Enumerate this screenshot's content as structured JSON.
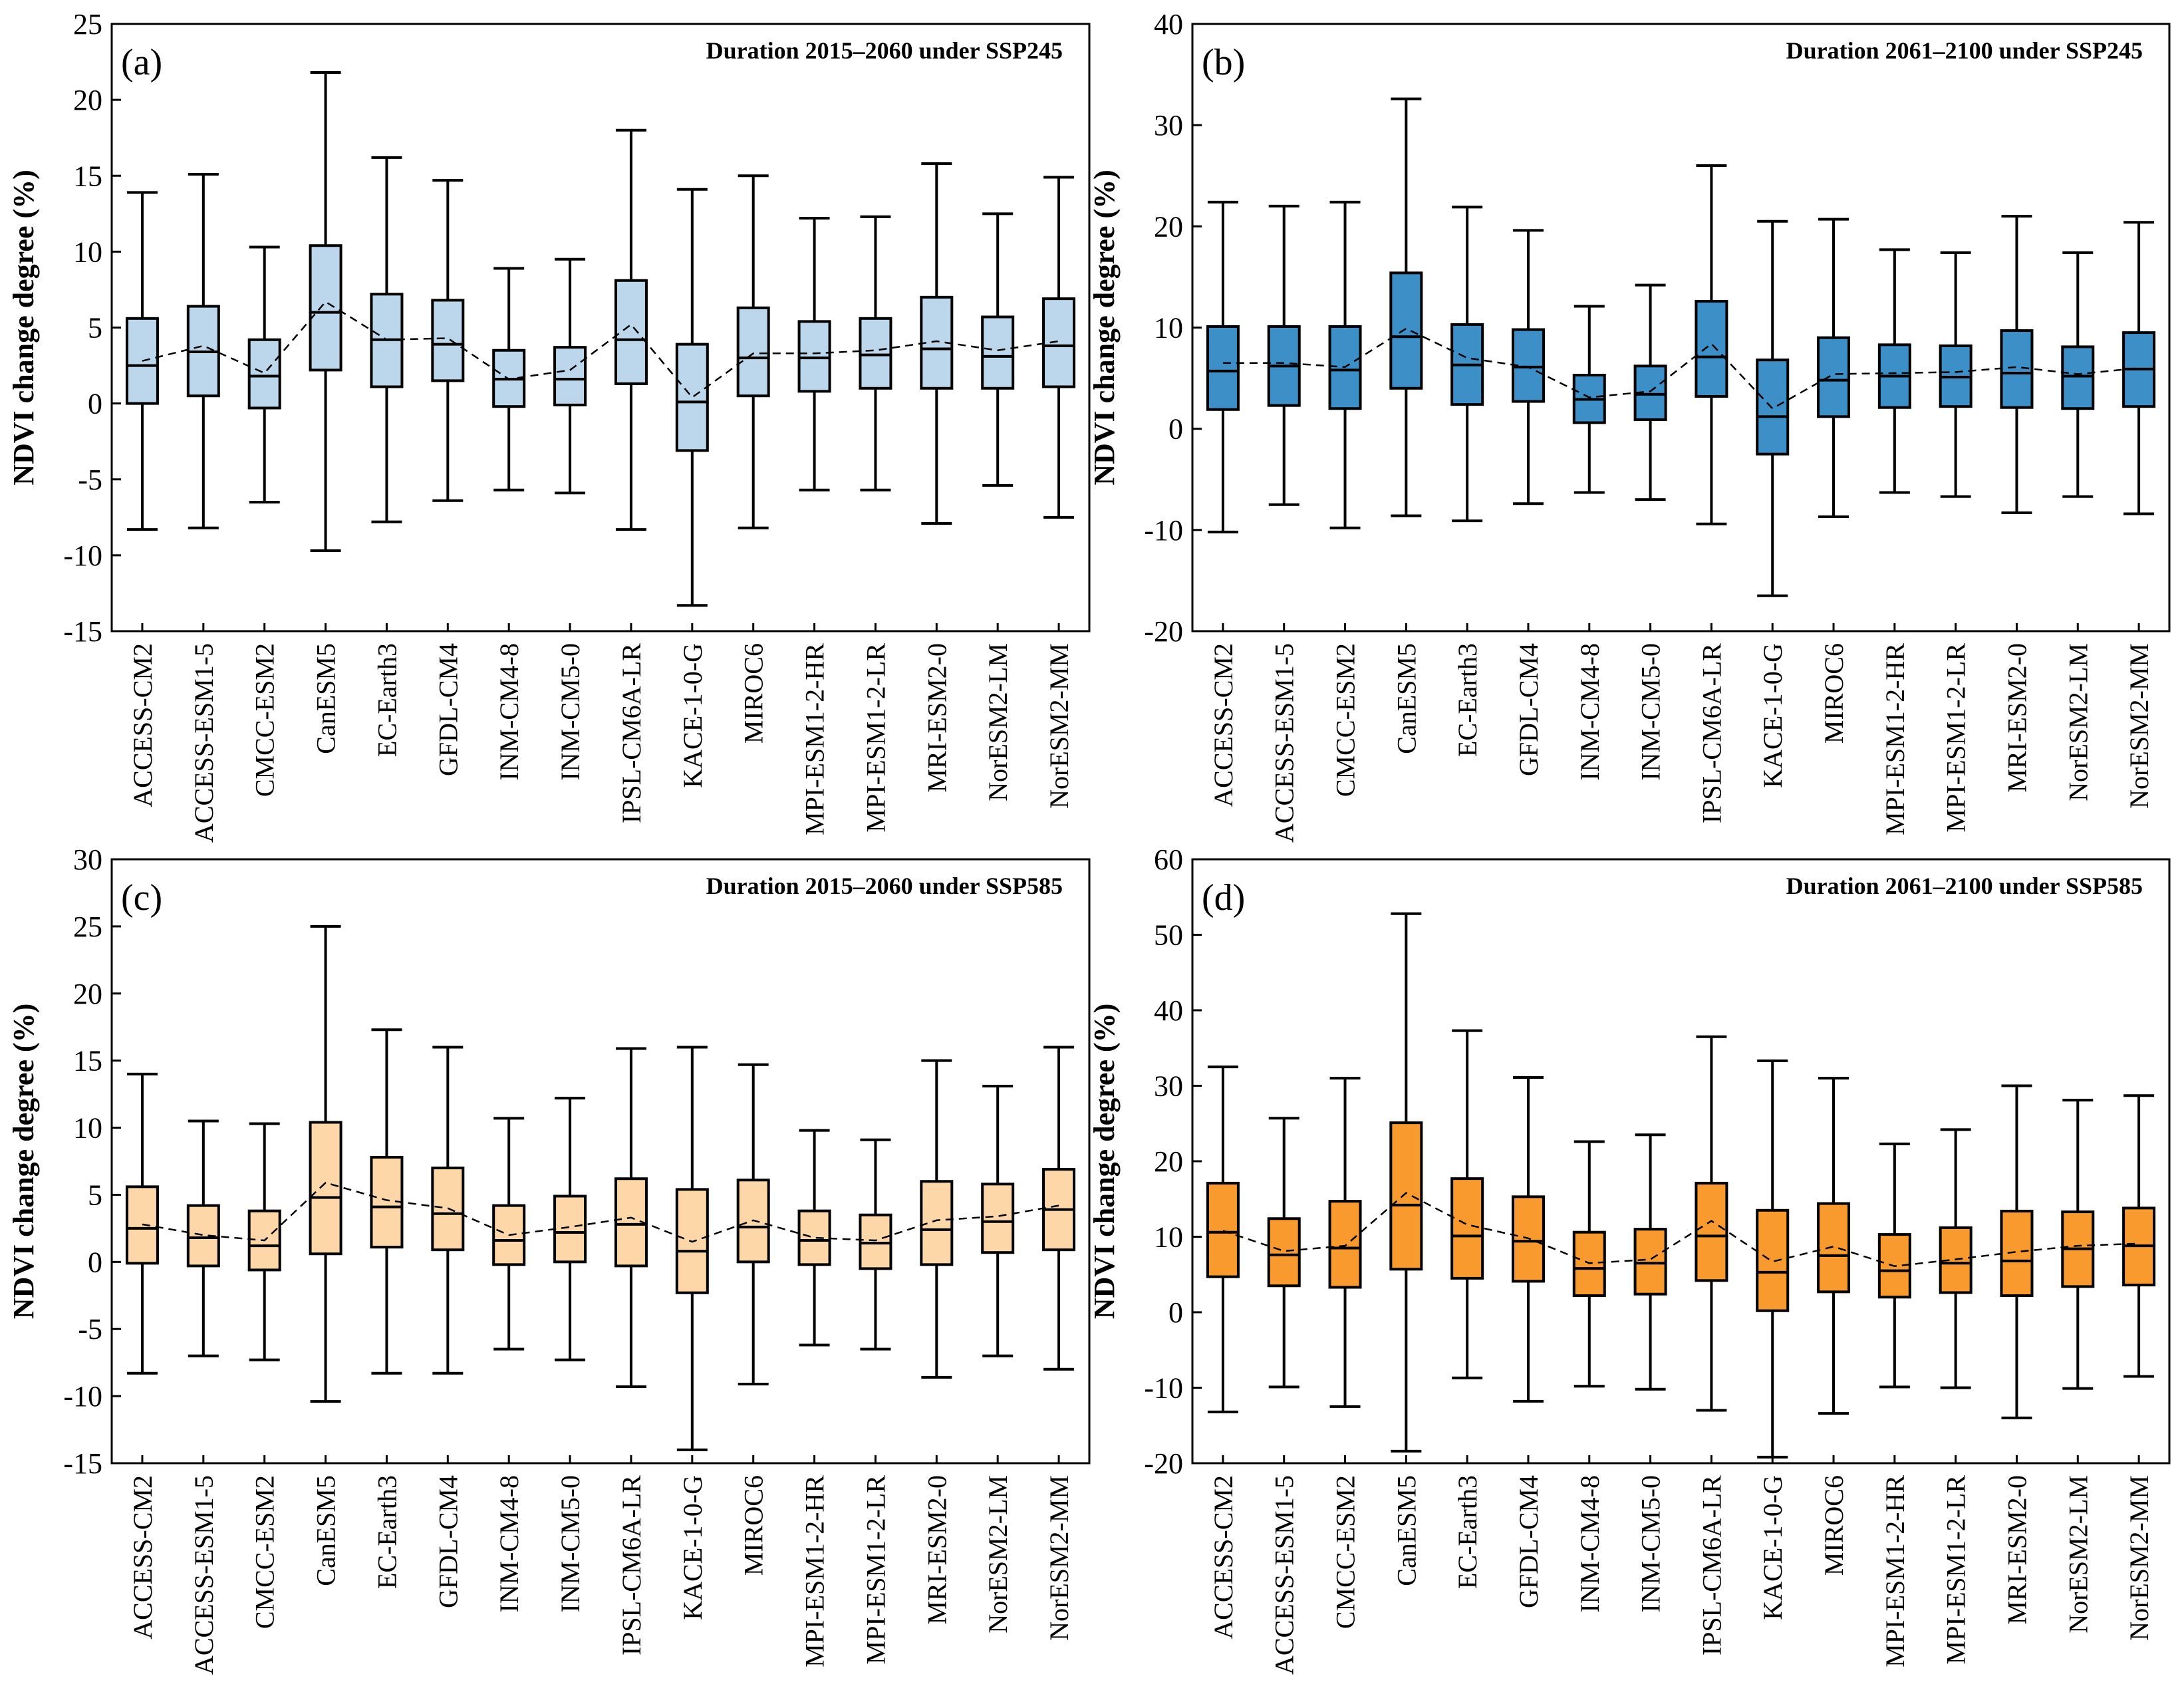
{
  "chart_data": [
    {
      "type": "box",
      "panel_label": "(a)",
      "title": "Duration 2015–2060 under SSP245",
      "y_label": "NDVI change degree (%)",
      "color": "#bcd7ec",
      "categories": [
        "ACCESS-CM2",
        "ACCESS-ESM1-5",
        "CMCC-ESM2",
        "CanESM5",
        "EC-Earth3",
        "GFDL-CM4",
        "INM-CM4-8",
        "INM-CM5-0",
        "IPSL-CM6A-LR",
        "KACE-1-0-G",
        "MIROC6",
        "MPI-ESM1-2-HR",
        "MPI-ESM1-2-LR",
        "MRI-ESM2-0",
        "NorESM2-LM",
        "NorESM2-MM"
      ],
      "stats": {
        "whisker_low": [
          -8.3,
          -8.2,
          -6.5,
          -9.7,
          -7.8,
          -6.4,
          -5.7,
          -5.9,
          -8.3,
          -13.3,
          -8.2,
          -5.7,
          -5.7,
          -7.9,
          -5.4,
          -7.5
        ],
        "q1": [
          0,
          0.5,
          -0.3,
          2.2,
          1.1,
          1.5,
          -0.2,
          -0.1,
          1.3,
          -3.1,
          0.5,
          0.8,
          1.0,
          1.0,
          1.0,
          1.1
        ],
        "median": [
          2.5,
          3.4,
          1.8,
          6.0,
          4.2,
          3.9,
          1.6,
          1.6,
          4.2,
          0.1,
          3.0,
          3.0,
          3.2,
          3.6,
          3.1,
          3.8
        ],
        "q3": [
          5.6,
          6.4,
          4.2,
          10.4,
          7.2,
          6.8,
          3.5,
          3.7,
          8.1,
          3.9,
          6.3,
          5.4,
          5.6,
          7.0,
          5.7,
          6.9
        ],
        "whisker_high": [
          13.9,
          15.1,
          10.3,
          21.8,
          16.2,
          14.7,
          8.9,
          9.5,
          18.0,
          14.1,
          15.0,
          12.2,
          12.3,
          15.8,
          12.5,
          14.9
        ],
        "mean": [
          2.8,
          3.8,
          2.0,
          6.7,
          4.2,
          4.3,
          1.6,
          2.2,
          5.2,
          0.4,
          3.3,
          3.3,
          3.5,
          4.1,
          3.5,
          4.1
        ]
      },
      "ylim": [
        -15,
        25
      ],
      "yticks": [
        -15,
        -10,
        -5,
        0,
        5,
        10,
        15,
        20,
        25
      ]
    },
    {
      "type": "box",
      "panel_label": "(b)",
      "title": "Duration 2061–2100 under SSP245",
      "y_label": "NDVI change degree (%)",
      "color": "#3d8fc8",
      "categories": [
        "ACCESS-CM2",
        "ACCESS-ESM1-5",
        "CMCC-ESM2",
        "CanESM5",
        "EC-Earth3",
        "GFDL-CM4",
        "INM-CM4-8",
        "INM-CM5-0",
        "IPSL-CM6A-LR",
        "KACE-1-0-G",
        "MIROC6",
        "MPI-ESM1-2-HR",
        "MPI-ESM1-2-LR",
        "MRI-ESM2-0",
        "NorESM2-LM",
        "NorESM2-MM"
      ],
      "stats": {
        "whisker_low": [
          -10.2,
          -7.5,
          -9.8,
          -8.6,
          -9.1,
          -7.4,
          -6.3,
          -7.0,
          -9.4,
          -16.5,
          -8.7,
          -6.3,
          -6.7,
          -8.3,
          -6.7,
          -8.4
        ],
        "q1": [
          1.9,
          2.3,
          2.0,
          4.0,
          2.4,
          2.7,
          0.6,
          0.9,
          3.2,
          -2.5,
          1.2,
          2.1,
          2.2,
          2.1,
          2.0,
          2.2
        ],
        "median": [
          5.7,
          6.2,
          5.8,
          9.1,
          6.3,
          6.1,
          2.9,
          3.4,
          7.1,
          1.2,
          4.8,
          5.2,
          5.1,
          5.5,
          5.2,
          5.9
        ],
        "q3": [
          10.1,
          10.1,
          10.1,
          15.4,
          10.3,
          9.8,
          5.3,
          6.2,
          12.6,
          6.8,
          9.0,
          8.3,
          8.2,
          9.7,
          8.1,
          9.5
        ],
        "whisker_high": [
          22.4,
          22.0,
          22.4,
          32.6,
          21.9,
          19.6,
          12.1,
          14.2,
          26.0,
          20.5,
          20.7,
          17.7,
          17.4,
          21.0,
          17.4,
          20.4
        ],
        "mean": [
          6.5,
          6.5,
          6.1,
          9.9,
          7.0,
          6.1,
          3.1,
          3.7,
          8.4,
          2.0,
          5.4,
          5.5,
          5.6,
          6.1,
          5.4,
          6.0
        ]
      },
      "ylim": [
        -20,
        40
      ],
      "yticks": [
        -20,
        -10,
        0,
        10,
        20,
        30,
        40
      ]
    },
    {
      "type": "box",
      "panel_label": "(c)",
      "title": "Duration 2015–2060 under SSP585",
      "y_label": "NDVI change degree (%)",
      "color": "#fdd7a8",
      "categories": [
        "ACCESS-CM2",
        "ACCESS-ESM1-5",
        "CMCC-ESM2",
        "CanESM5",
        "EC-Earth3",
        "GFDL-CM4",
        "INM-CM4-8",
        "INM-CM5-0",
        "IPSL-CM6A-LR",
        "KACE-1-0-G",
        "MIROC6",
        "MPI-ESM1-2-HR",
        "MPI-ESM1-2-LR",
        "MRI-ESM2-0",
        "NorESM2-LM",
        "NorESM2-MM"
      ],
      "stats": {
        "whisker_low": [
          -8.3,
          -7.0,
          -7.3,
          -10.4,
          -8.3,
          -8.3,
          -6.5,
          -7.3,
          -9.3,
          -14.0,
          -9.1,
          -6.2,
          -6.5,
          -8.6,
          -7.0,
          -8.0
        ],
        "q1": [
          -0.1,
          -0.3,
          -0.6,
          0.6,
          1.1,
          0.9,
          -0.2,
          0,
          -0.3,
          -2.3,
          0,
          -0.2,
          -0.5,
          -0.2,
          0.7,
          0.9
        ],
        "median": [
          2.5,
          1.8,
          1.2,
          4.8,
          4.1,
          3.6,
          1.6,
          2.2,
          2.8,
          0.8,
          2.6,
          1.6,
          1.4,
          2.4,
          3.0,
          3.9
        ],
        "q3": [
          5.6,
          4.2,
          3.8,
          10.4,
          7.8,
          7.0,
          4.2,
          4.9,
          6.2,
          5.4,
          6.1,
          3.8,
          3.5,
          6.0,
          5.8,
          6.9
        ],
        "whisker_high": [
          14.0,
          10.5,
          10.3,
          25.0,
          17.3,
          16.0,
          10.7,
          12.2,
          15.9,
          16.0,
          14.7,
          9.8,
          9.1,
          15.0,
          13.1,
          16.0
        ],
        "mean": [
          2.8,
          2.0,
          1.6,
          5.9,
          4.6,
          4.0,
          2.0,
          2.6,
          3.3,
          1.5,
          3.1,
          1.8,
          1.6,
          3.1,
          3.4,
          4.2
        ]
      },
      "ylim": [
        -15,
        30
      ],
      "yticks": [
        -15,
        -10,
        -5,
        0,
        5,
        10,
        15,
        20,
        25,
        30
      ]
    },
    {
      "type": "box",
      "panel_label": "(d)",
      "title": "Duration 2061–2100 under SSP585",
      "y_label": "NDVI change degree (%)",
      "color": "#f99a2e",
      "categories": [
        "ACCESS-CM2",
        "ACCESS-ESM1-5",
        "CMCC-ESM2",
        "CanESM5",
        "EC-Earth3",
        "GFDL-CM4",
        "INM-CM4-8",
        "INM-CM5-0",
        "IPSL-CM6A-LR",
        "KACE-1-0-G",
        "MIROC6",
        "MPI-ESM1-2-HR",
        "MPI-ESM1-2-LR",
        "MRI-ESM2-0",
        "NorESM2-LM",
        "NorESM2-MM"
      ],
      "stats": {
        "whisker_low": [
          -13.2,
          -9.9,
          -12.5,
          -18.4,
          -8.7,
          -11.8,
          -9.8,
          -10.2,
          -13.0,
          -19.2,
          -13.4,
          -9.9,
          -10.0,
          -14.0,
          -10.1,
          -8.5
        ],
        "q1": [
          4.7,
          3.5,
          3.3,
          5.7,
          4.5,
          4.1,
          2.2,
          2.4,
          4.2,
          0.2,
          2.7,
          2.0,
          2.6,
          2.2,
          3.4,
          3.6
        ],
        "median": [
          10.6,
          7.6,
          8.5,
          14.2,
          10.1,
          9.4,
          5.8,
          6.5,
          10.1,
          5.3,
          7.5,
          5.5,
          6.5,
          6.8,
          8.4,
          8.8
        ],
        "q3": [
          17.1,
          12.4,
          14.7,
          25.1,
          17.7,
          15.3,
          10.6,
          11.0,
          17.1,
          13.5,
          14.4,
          10.3,
          11.2,
          13.4,
          13.3,
          13.8
        ],
        "whisker_high": [
          32.5,
          25.7,
          31.0,
          52.8,
          37.3,
          31.1,
          22.6,
          23.5,
          36.5,
          33.3,
          31.0,
          22.3,
          24.2,
          30.0,
          28.1,
          28.7
        ],
        "mean": [
          10.8,
          8.1,
          8.8,
          15.8,
          11.6,
          9.8,
          6.5,
          7.0,
          12.1,
          6.7,
          8.7,
          6.1,
          7.0,
          8.0,
          8.8,
          9.1
        ]
      },
      "ylim": [
        -20,
        60
      ],
      "yticks": [
        -20,
        -10,
        0,
        10,
        20,
        30,
        40,
        50,
        60
      ]
    }
  ]
}
